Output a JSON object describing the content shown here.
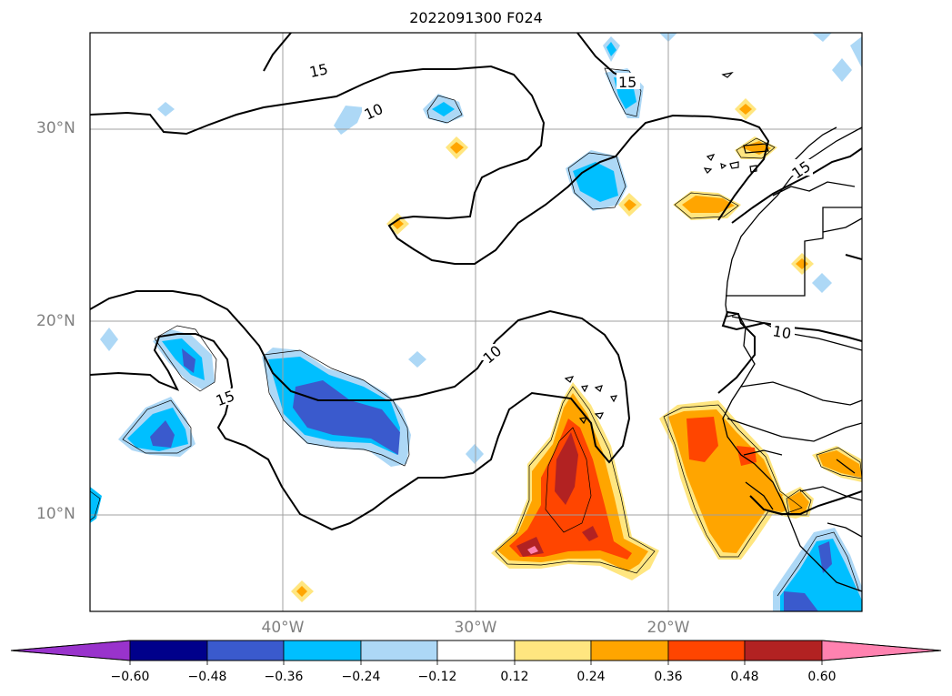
{
  "title": "2022091300 F024",
  "lat_labels": [
    "30°N",
    "20°N",
    "10°N"
  ],
  "lon_labels": [
    "40°W",
    "30°W",
    "20°W"
  ],
  "contour_labels": [
    "15",
    "10",
    "15",
    "10",
    "15",
    "10",
    "15"
  ],
  "colorbar": {
    "ticks": [
      "−0.60",
      "−0.48",
      "−0.36",
      "−0.24",
      "−0.12",
      "0.12",
      "0.24",
      "0.36",
      "0.48",
      "0.60"
    ],
    "colors": [
      "#9933cc",
      "#00008b",
      "#3a5acd",
      "#00bfff",
      "#add8f6",
      "#ffffff",
      "#ffe680",
      "#ffa500",
      "#ff4500",
      "#b22222",
      "#ff82b0"
    ]
  }
}
